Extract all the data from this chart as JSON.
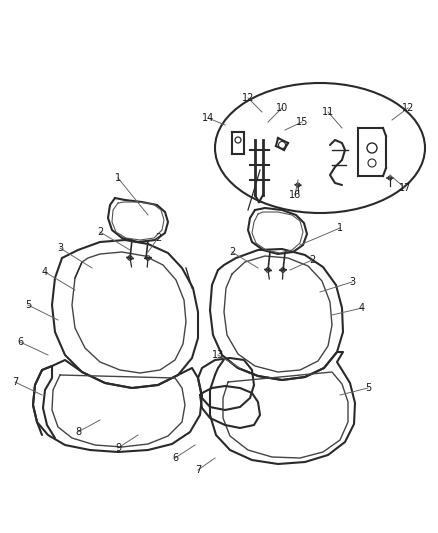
{
  "background_color": "#ffffff",
  "line_color": "#2a2a2a",
  "label_color": "#1a1a1a",
  "figsize": [
    4.38,
    5.33
  ],
  "dpi": 100
}
